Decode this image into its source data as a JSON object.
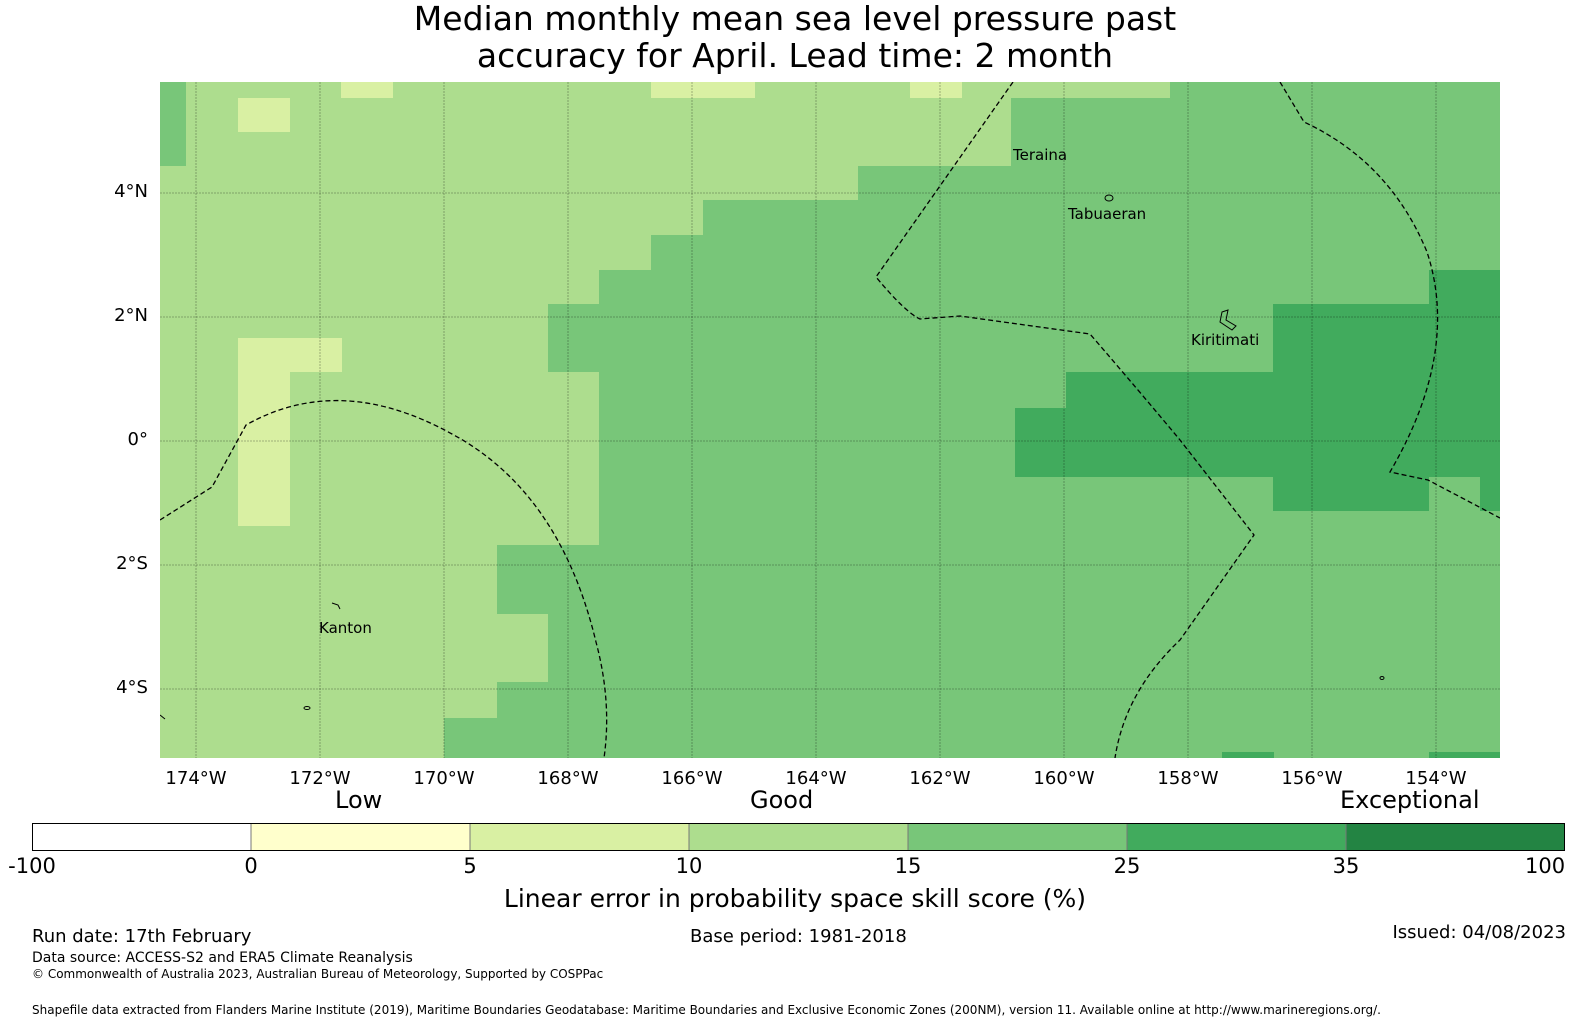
{
  "title": {
    "line1": "Median monthly mean sea level pressure past",
    "line2": "accuracy for April. Lead time: 2 month"
  },
  "map": {
    "lat_ticks": [
      "4°N",
      "2°N",
      "0°",
      "2°S",
      "4°S"
    ],
    "lon_ticks": [
      "174°W",
      "172°W",
      "170°W",
      "168°W",
      "166°W",
      "164°W",
      "162°W",
      "160°W",
      "158°W",
      "156°W",
      "154°W"
    ],
    "places": [
      "Teraina",
      "Tabuaeran",
      "Kiritimati",
      "Kanton"
    ]
  },
  "colorbar": {
    "categories": [
      "Low",
      "Good",
      "Exceptional"
    ],
    "tick_labels": [
      "-100",
      "0",
      "5",
      "10",
      "15",
      "25",
      "35",
      "100"
    ],
    "colors": [
      "#ffffff",
      "#ffffcc",
      "#d9f0a3",
      "#addd8e",
      "#78c679",
      "#41ab5d",
      "#238443"
    ],
    "title": "Linear error in probability space skill score (%)"
  },
  "footer": {
    "run_date": "Run date: 17th February",
    "base_period": "Base period: 1981-2018",
    "issued": "Issued: 04/08/2023",
    "data_source": "Data source: ACCESS-S2 and ERA5 Climate Reanalysis",
    "copyright": "© Commonwealth of Australia 2023, Australian Bureau of Meteorology, Supported by COSPPac",
    "shapefile": "Shapefile data extracted from Flanders Marine Institute (2019), Maritime Boundaries Geodatabase: Maritime Boundaries and Exclusive Economic Zones (200NM), version 11. Available online at http://www.marineregions.org/."
  }
}
